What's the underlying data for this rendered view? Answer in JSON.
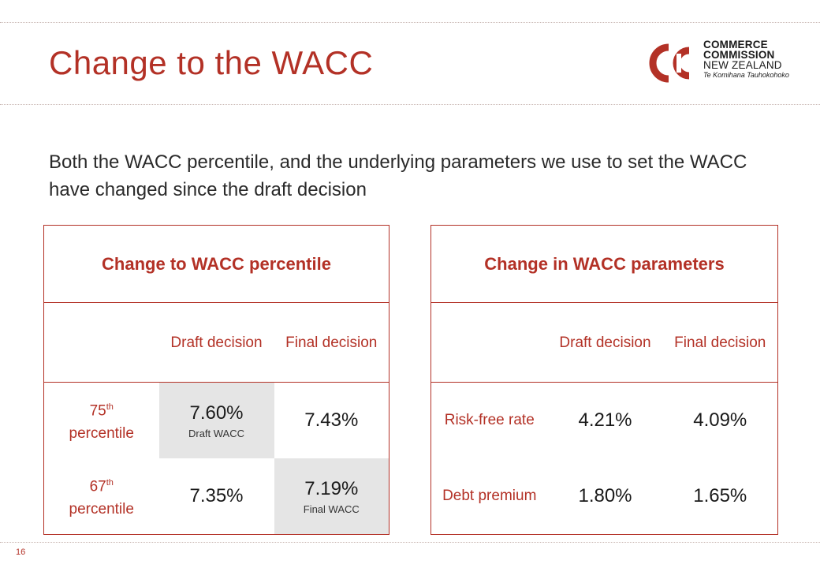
{
  "title": "Change to the WACC",
  "logo": {
    "line1": "COMMERCE",
    "line2": "COMMISSION",
    "line3": "NEW ZEALAND",
    "line4": "Te Komihana Tauhokohoko"
  },
  "intro": "Both the WACC percentile, and the underlying parameters we use to set the WACC have changed since the draft decision",
  "left_table": {
    "header": "Change to WACC percentile",
    "col_draft": "Draft decision",
    "col_final": "Final decision",
    "rows": [
      {
        "label_num": "75",
        "label_sup": "th",
        "label_rest": "percentile",
        "draft": "7.60%",
        "draft_note": "Draft WACC",
        "final": "7.43%",
        "final_note": ""
      },
      {
        "label_num": "67",
        "label_sup": "th",
        "label_rest": "percentile",
        "draft": "7.35%",
        "draft_note": "",
        "final": "7.19%",
        "final_note": "Final WACC"
      }
    ]
  },
  "right_table": {
    "header": "Change in WACC parameters",
    "col_draft": "Draft decision",
    "col_final": "Final decision",
    "rows": [
      {
        "label": "Risk-free rate",
        "draft": "4.21%",
        "final": "4.09%"
      },
      {
        "label": "Debt premium",
        "draft": "1.80%",
        "final": "1.65%"
      }
    ]
  },
  "page_number": "16",
  "colors": {
    "accent": "#b33126",
    "shade": "#e5e5e5"
  }
}
